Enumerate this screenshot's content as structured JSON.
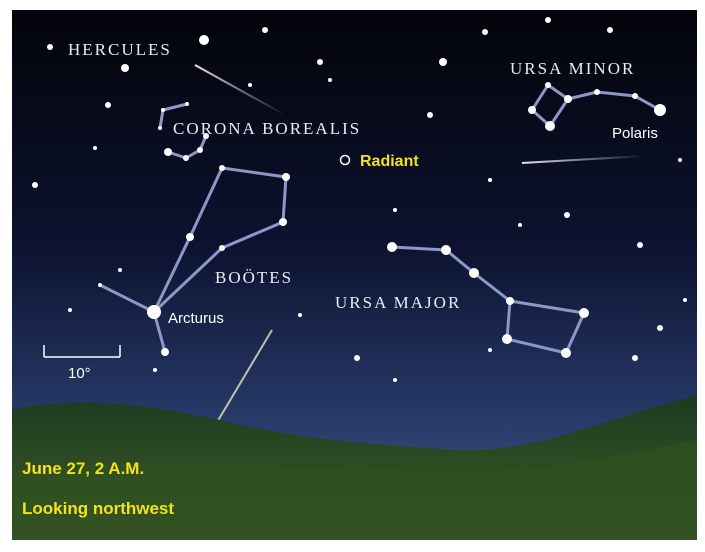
{
  "labels": {
    "hercules": "HERCULES",
    "corona_borealis": "CORONA BOREALIS",
    "ursa_minor": "URSA MINOR",
    "polaris": "Polaris",
    "radiant": "Radiant",
    "bootes": "BOÖTES",
    "ursa_major": "URSA MAJOR",
    "arcturus": "Arcturus",
    "scale": "10°"
  },
  "caption": {
    "line1": "June 27, 2 A.M.",
    "line2": "Looking northwest"
  }
}
